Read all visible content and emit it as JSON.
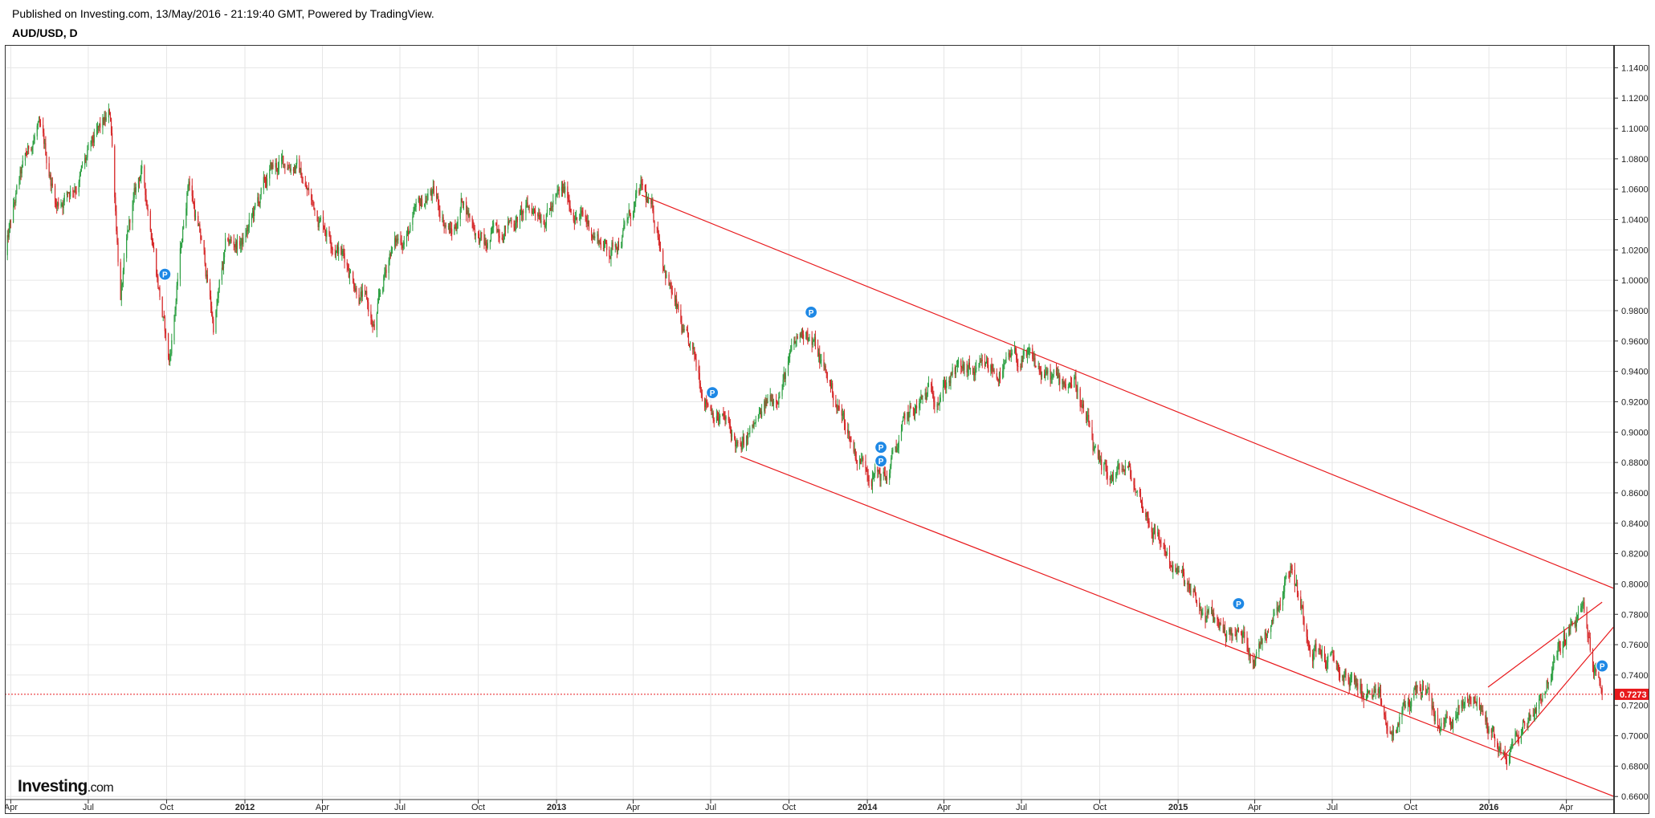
{
  "header": {
    "published": "Published on Investing.com, 13/May/2016 - 21:19:40 GMT, Powered by TradingView.",
    "symbol": "AUD/USD, D"
  },
  "logo": {
    "main": "Investing",
    "suffix": ".com"
  },
  "colors": {
    "up": "#2ea043",
    "down": "#d62728",
    "trendline": "#e8191c",
    "price_line": "#e8191c",
    "price_label_bg": "#e8191c",
    "marker": "#1e88e5",
    "grid": "#e6e6e6"
  },
  "chart_data": {
    "type": "candlestick",
    "title": "",
    "symbol": "AUD/USD",
    "interval": "D",
    "grid": true,
    "ylim": [
      0.658,
      1.155
    ],
    "xlim": [
      "2011-03-25",
      "2016-05-27"
    ],
    "y_ticks": [
      "1.1400",
      "1.1200",
      "1.1000",
      "1.0800",
      "1.0600",
      "1.0400",
      "1.0200",
      "1.0000",
      "0.9800",
      "0.9600",
      "0.9400",
      "0.9200",
      "0.9000",
      "0.8800",
      "0.8600",
      "0.8400",
      "0.8200",
      "0.8000",
      "0.7800",
      "0.7600",
      "0.7400",
      "0.7200",
      "0.7000",
      "0.6800",
      "0.6600"
    ],
    "x_ticks": [
      {
        "date": "2011-04-01",
        "label": "Apr"
      },
      {
        "date": "2011-07-01",
        "label": "Jul"
      },
      {
        "date": "2011-10-01",
        "label": "Oct"
      },
      {
        "date": "2012-01-01",
        "label": "2012"
      },
      {
        "date": "2012-04-01",
        "label": "Apr"
      },
      {
        "date": "2012-07-01",
        "label": "Jul"
      },
      {
        "date": "2012-10-01",
        "label": "Oct"
      },
      {
        "date": "2013-01-01",
        "label": "2013"
      },
      {
        "date": "2013-04-01",
        "label": "Apr"
      },
      {
        "date": "2013-07-01",
        "label": "Jul"
      },
      {
        "date": "2013-10-01",
        "label": "Oct"
      },
      {
        "date": "2014-01-01",
        "label": "2014"
      },
      {
        "date": "2014-04-01",
        "label": "Apr"
      },
      {
        "date": "2014-07-01",
        "label": "Jul"
      },
      {
        "date": "2014-10-01",
        "label": "Oct"
      },
      {
        "date": "2015-01-01",
        "label": "2015"
      },
      {
        "date": "2015-04-01",
        "label": "Apr"
      },
      {
        "date": "2015-07-01",
        "label": "Jul"
      },
      {
        "date": "2015-10-01",
        "label": "Oct"
      },
      {
        "date": "2016-01-01",
        "label": "2016"
      },
      {
        "date": "2016-04-01",
        "label": "Apr"
      }
    ],
    "last_price": "0.7273",
    "price_path": [
      [
        "2011-03-25",
        1.015
      ],
      [
        "2011-04-10",
        1.06
      ],
      [
        "2011-05-02",
        1.1
      ],
      [
        "2011-05-25",
        1.05
      ],
      [
        "2011-06-20",
        1.07
      ],
      [
        "2011-07-27",
        1.105
      ],
      [
        "2011-08-08",
        0.99
      ],
      [
        "2011-08-20",
        1.04
      ],
      [
        "2011-09-01",
        1.07
      ],
      [
        "2011-09-15",
        1.03
      ],
      [
        "2011-10-04",
        0.945
      ],
      [
        "2011-10-27",
        1.07
      ],
      [
        "2011-11-15",
        1.01
      ],
      [
        "2011-11-25",
        0.97
      ],
      [
        "2011-12-10",
        1.02
      ],
      [
        "2011-12-30",
        1.025
      ],
      [
        "2012-02-01",
        1.07
      ],
      [
        "2012-02-29",
        1.08
      ],
      [
        "2012-03-20",
        1.05
      ],
      [
        "2012-04-15",
        1.03
      ],
      [
        "2012-05-20",
        0.99
      ],
      [
        "2012-06-01",
        0.965
      ],
      [
        "2012-06-20",
        1.02
      ],
      [
        "2012-07-15",
        1.035
      ],
      [
        "2012-08-06",
        1.058
      ],
      [
        "2012-09-01",
        1.03
      ],
      [
        "2012-09-13",
        1.055
      ],
      [
        "2012-10-10",
        1.02
      ],
      [
        "2012-11-01",
        1.04
      ],
      [
        "2012-12-01",
        1.045
      ],
      [
        "2013-01-10",
        1.055
      ],
      [
        "2013-02-01",
        1.04
      ],
      [
        "2013-03-05",
        1.02
      ],
      [
        "2013-04-11",
        1.056
      ],
      [
        "2013-05-01",
        1.03
      ],
      [
        "2013-05-31",
        0.958
      ],
      [
        "2013-06-20",
        0.93
      ],
      [
        "2013-07-15",
        0.91
      ],
      [
        "2013-08-05",
        0.885
      ],
      [
        "2013-09-01",
        0.91
      ],
      [
        "2013-10-22",
        0.97
      ],
      [
        "2013-11-15",
        0.935
      ],
      [
        "2013-12-20",
        0.885
      ],
      [
        "2014-01-23",
        0.87
      ],
      [
        "2014-02-15",
        0.905
      ],
      [
        "2014-04-10",
        0.94
      ],
      [
        "2014-05-15",
        0.935
      ],
      [
        "2014-07-01",
        0.946
      ],
      [
        "2014-08-15",
        0.93
      ],
      [
        "2014-09-01",
        0.938
      ],
      [
        "2014-10-03",
        0.865
      ],
      [
        "2014-11-01",
        0.875
      ],
      [
        "2014-12-01",
        0.84
      ],
      [
        "2015-01-26",
        0.78
      ],
      [
        "2015-03-15",
        0.765
      ],
      [
        "2015-04-02",
        0.755
      ],
      [
        "2015-05-14",
        0.815
      ],
      [
        "2015-06-01",
        0.77
      ],
      [
        "2015-07-10",
        0.74
      ],
      [
        "2015-08-20",
        0.725
      ],
      [
        "2015-09-07",
        0.695
      ],
      [
        "2015-10-12",
        0.735
      ],
      [
        "2015-11-05",
        0.705
      ],
      [
        "2015-12-15",
        0.725
      ],
      [
        "2016-01-20",
        0.685
      ],
      [
        "2016-02-20",
        0.715
      ],
      [
        "2016-03-31",
        0.765
      ],
      [
        "2016-04-21",
        0.78
      ],
      [
        "2016-05-05",
        0.74
      ],
      [
        "2016-05-13",
        0.7273
      ]
    ],
    "markers": [
      {
        "date": "2011-09-29",
        "value": 1.004,
        "label": "P"
      },
      {
        "date": "2013-07-03",
        "value": 0.926,
        "label": "P"
      },
      {
        "date": "2013-10-27",
        "value": 0.979,
        "label": "P"
      },
      {
        "date": "2014-01-17",
        "value": 0.89,
        "label": "P"
      },
      {
        "date": "2014-01-17",
        "value": 0.881,
        "label": "P"
      },
      {
        "date": "2015-03-13",
        "value": 0.787,
        "label": "P"
      },
      {
        "date": "2016-05-13",
        "value": 0.746,
        "label": "P"
      }
    ],
    "trendlines": [
      {
        "from": [
          "2013-04-11",
          1.056
        ],
        "to": [
          "2016-05-27",
          0.797
        ]
      },
      {
        "from": [
          "2013-08-05",
          0.884
        ],
        "to": [
          "2016-05-27",
          0.66
        ]
      },
      {
        "from": [
          "2016-01-15",
          0.684
        ],
        "to": [
          "2016-05-27",
          0.772
        ]
      },
      {
        "from": [
          "2015-12-31",
          0.732
        ],
        "to": [
          "2016-05-13",
          0.788
        ]
      }
    ]
  }
}
